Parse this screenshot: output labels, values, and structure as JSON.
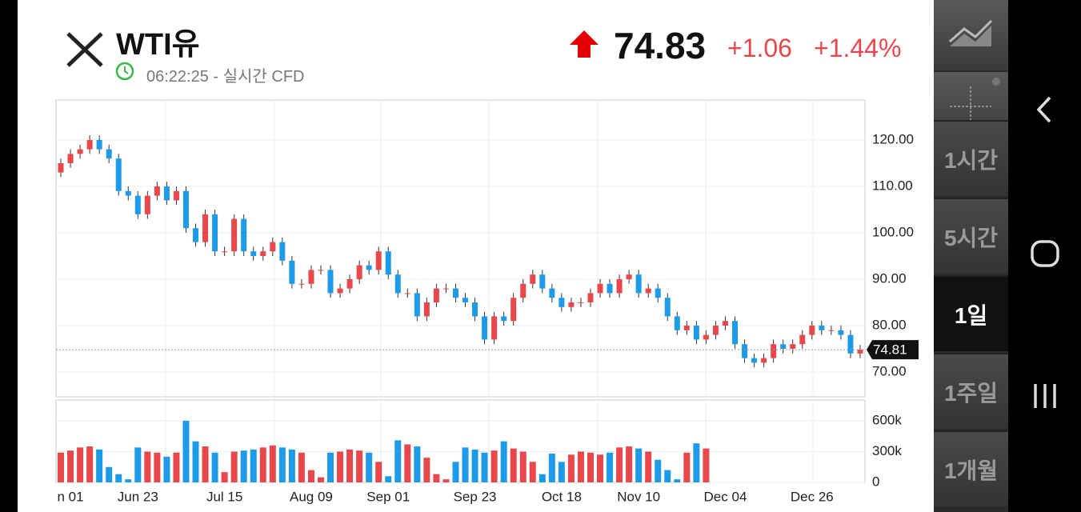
{
  "header": {
    "title": "WTI유",
    "time_status": "06:22:25 - 실시간 CFD",
    "price": "74.83",
    "change": "+1.06",
    "change_percent": "+1.44%"
  },
  "timeframes": [
    "1시간",
    "5시간",
    "1일",
    "1주일",
    "1개월"
  ],
  "chart_data": {
    "type": "candlestick",
    "up_color": "#e8474c",
    "down_color": "#1e9be8",
    "categories": [
      null,
      "n 01",
      null,
      null,
      null,
      null,
      null,
      null,
      "Jun 23",
      null,
      null,
      null,
      null,
      null,
      null,
      null,
      null,
      "Jul 15",
      null,
      null,
      null,
      null,
      null,
      null,
      null,
      null,
      "Aug 09",
      null,
      null,
      null,
      null,
      null,
      null,
      null,
      "Sep 01",
      null,
      null,
      null,
      null,
      null,
      null,
      null,
      null,
      "Sep 23",
      null,
      null,
      null,
      null,
      null,
      null,
      null,
      null,
      "Oct 18",
      null,
      null,
      null,
      null,
      null,
      null,
      null,
      "Nov 10",
      null,
      null,
      null,
      null,
      null,
      null,
      null,
      null,
      "Dec 04",
      null,
      null,
      null,
      null,
      null,
      null,
      null,
      null,
      "Dec 26",
      null,
      null,
      null,
      null,
      null
    ],
    "open": [
      113,
      115,
      117,
      118,
      120,
      118,
      116,
      109,
      108,
      104,
      108,
      110,
      107,
      109,
      101,
      98,
      104,
      96,
      96,
      103,
      96,
      95,
      96,
      98,
      94,
      89,
      89,
      92,
      92,
      87,
      88,
      90,
      93,
      92,
      96,
      91,
      87,
      87,
      82,
      85,
      88,
      88,
      86,
      85,
      82,
      77,
      82,
      81,
      86,
      89,
      91,
      88,
      86,
      84,
      85,
      85,
      87,
      89,
      87,
      90,
      91,
      87,
      88,
      86,
      82,
      79,
      80,
      77,
      78,
      80,
      81,
      76,
      73,
      72,
      73,
      76,
      75,
      76,
      78,
      80,
      79,
      79,
      78,
      74
    ],
    "high": [
      116,
      118,
      119,
      121,
      121,
      119,
      117,
      110,
      109,
      109,
      111,
      111,
      110,
      110,
      102,
      105,
      105,
      97,
      104,
      104,
      97,
      97,
      99,
      99,
      95,
      90,
      93,
      93,
      93,
      89,
      91,
      94,
      94,
      97,
      97,
      92,
      88,
      88,
      86,
      89,
      89,
      89,
      87,
      86,
      83,
      83,
      83,
      87,
      90,
      92,
      92,
      89,
      87,
      86,
      86,
      88,
      90,
      90,
      91,
      92,
      92,
      89,
      89,
      87,
      83,
      81,
      81,
      79,
      81,
      82,
      82,
      77,
      74,
      74,
      77,
      77,
      77,
      79,
      81,
      81,
      80,
      80,
      79,
      75.81
    ],
    "low": [
      112,
      114,
      116,
      117,
      117,
      115,
      108,
      107,
      103,
      103,
      107,
      106,
      106,
      100,
      97,
      97,
      95,
      95,
      95,
      95,
      94,
      94,
      95,
      93,
      88,
      88,
      88,
      91,
      86,
      86,
      87,
      89,
      91,
      91,
      90,
      86,
      86,
      81,
      81,
      84,
      87,
      85,
      84,
      81,
      76,
      76,
      80,
      80,
      85,
      88,
      87,
      85,
      83,
      83,
      84,
      84,
      86,
      86,
      86,
      89,
      86,
      86,
      85,
      81,
      78,
      78,
      76,
      76,
      77,
      79,
      75,
      72,
      71,
      71,
      72,
      74,
      74,
      75,
      77,
      78,
      78,
      77,
      73,
      73
    ],
    "close": [
      115,
      117,
      118,
      120,
      118,
      116,
      109,
      108,
      104,
      108,
      110,
      107,
      109,
      101,
      98,
      104,
      96,
      96,
      103,
      96,
      95,
      96,
      98,
      94,
      89,
      89,
      92,
      92,
      87,
      88,
      90,
      93,
      92,
      96,
      91,
      87,
      87,
      82,
      85,
      88,
      88,
      86,
      85,
      82,
      77,
      82,
      81,
      86,
      89,
      91,
      88,
      86,
      84,
      85,
      85,
      87,
      89,
      87,
      90,
      91,
      87,
      88,
      86,
      82,
      79,
      80,
      77,
      78,
      80,
      81,
      76,
      73,
      72,
      73,
      76,
      75,
      76,
      78,
      80,
      79,
      79,
      78,
      74,
      74.81
    ],
    "volume": [
      290000,
      310000,
      340000,
      350000,
      320000,
      150000,
      80000,
      30000,
      340000,
      300000,
      290000,
      250000,
      290000,
      600000,
      400000,
      350000,
      290000,
      100000,
      300000,
      310000,
      320000,
      340000,
      360000,
      340000,
      320000,
      290000,
      120000,
      50000,
      290000,
      300000,
      320000,
      310000,
      290000,
      200000,
      60000,
      410000,
      370000,
      350000,
      240000,
      80000,
      30000,
      200000,
      340000,
      320000,
      290000,
      310000,
      400000,
      330000,
      300000,
      200000,
      80000,
      280000,
      200000,
      270000,
      300000,
      290000,
      270000,
      290000,
      340000,
      350000,
      330000,
      300000,
      220000,
      120000,
      30000,
      290000,
      380000,
      330000,
      null,
      null,
      null,
      null,
      null,
      null,
      null,
      null,
      null,
      null,
      null,
      null,
      null,
      null,
      null,
      null
    ],
    "ylim": [
      64.66,
      128.62
    ],
    "yticks": [
      {
        "value": 70,
        "label": "70.00"
      },
      {
        "value": 80,
        "label": "80.00"
      },
      {
        "value": 90,
        "label": "90.00"
      },
      {
        "value": 100,
        "label": "100.00"
      },
      {
        "value": 110,
        "label": "110.00"
      },
      {
        "value": 120,
        "label": "120.00"
      }
    ],
    "volume_ylim": [
      0,
      802000
    ],
    "volume_yticks": [
      0,
      {
        "value": 300000,
        "label": "300k"
      },
      {
        "value": 600000,
        "label": "600k"
      }
    ],
    "grid": true
  }
}
